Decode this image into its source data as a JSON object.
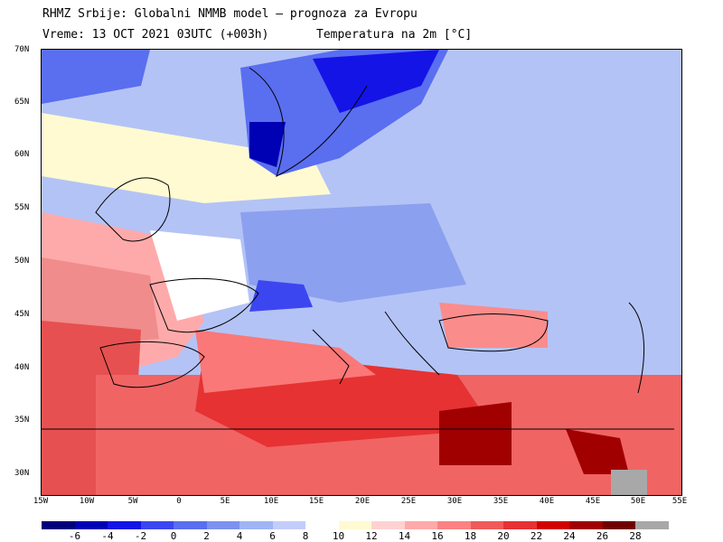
{
  "title_line1": "RHMZ Srbije: Globalni NMMB model — prognoza za Evropu",
  "title_line2_left": "Vreme: 13 OCT 2021 03UTC (+003h)",
  "title_line2_right": "Temperatura na 2m [°C]",
  "lat_labels": [
    "70N",
    "65N",
    "60N",
    "55N",
    "50N",
    "45N",
    "40N",
    "35N",
    "30N"
  ],
  "lon_labels": [
    "15W",
    "10W",
    "5W",
    "0",
    "5E",
    "10E",
    "15E",
    "20E",
    "25E",
    "30E",
    "35E",
    "40E",
    "45E",
    "50E",
    "55E"
  ],
  "legend": {
    "levels": [
      "-6",
      "-4",
      "-2",
      "0",
      "2",
      "4",
      "6",
      "8",
      "10",
      "12",
      "14",
      "16",
      "18",
      "20",
      "22",
      "24",
      "26",
      "28"
    ],
    "colors": [
      "#00007a",
      "#0000b4",
      "#1414e6",
      "#3c46f0",
      "#5a6ef0",
      "#7d91f0",
      "#a0b4f5",
      "#c3cdfa",
      "#ffffff",
      "#fffad2",
      "#ffd2d2",
      "#ffaaaa",
      "#fa8282",
      "#f05a5a",
      "#e63232",
      "#d20000",
      "#a00000",
      "#700000",
      "#a8a8a8"
    ]
  },
  "map_data": {
    "lon_range": [
      -15,
      55
    ],
    "lat_range": [
      28,
      70
    ],
    "variable": "Temperatura na 2m",
    "unit": "°C"
  }
}
